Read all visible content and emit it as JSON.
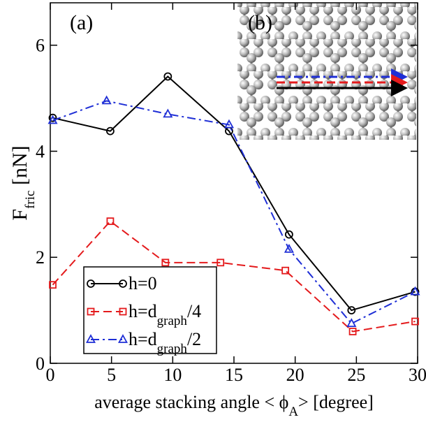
{
  "chart_data": {
    "type": "line",
    "x_label": [
      "average stacking angle < ϕ",
      "A",
      "> [degree]"
    ],
    "y_label": [
      "F",
      "fric",
      " [nN]"
    ],
    "annotations": [
      "(a)",
      "(b)"
    ],
    "xlim": [
      0,
      30
    ],
    "xticks": [
      0,
      5,
      10,
      15,
      20,
      25,
      30
    ],
    "ylim": [
      0,
      6.8
    ],
    "yticks": [
      0,
      2,
      4,
      6
    ],
    "legend": "lower left",
    "series": [
      {
        "name": [
          "h=0"
        ],
        "color": "#000000",
        "marker": "circle",
        "dash": "solid",
        "x": [
          0.2,
          4.9,
          9.6,
          14.6,
          19.5,
          24.6,
          29.8
        ],
        "values": [
          4.63,
          4.38,
          5.41,
          4.38,
          2.43,
          1.0,
          1.35
        ]
      },
      {
        "name": [
          "h=d",
          "graph",
          "/4"
        ],
        "color": "#e41a1c",
        "marker": "square",
        "dash": "dashed",
        "x": [
          0.2,
          4.9,
          9.4,
          13.9,
          19.2,
          24.7,
          29.8
        ],
        "values": [
          1.48,
          2.68,
          1.9,
          1.9,
          1.75,
          0.6,
          0.79
        ]
      },
      {
        "name": [
          "h=d",
          "graph",
          "/2"
        ],
        "color": "#1f2fd6",
        "marker": "triangle",
        "dash": "dashdot",
        "x": [
          0.2,
          4.6,
          9.6,
          14.6,
          19.5,
          24.6,
          29.8
        ],
        "values": [
          4.58,
          4.95,
          4.7,
          4.5,
          2.15,
          0.75,
          1.35
        ]
      }
    ]
  }
}
